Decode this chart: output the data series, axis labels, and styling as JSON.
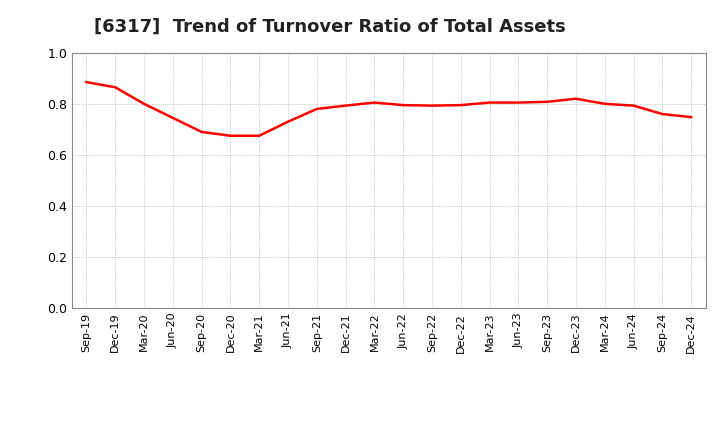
{
  "title": "[6317]  Trend of Turnover Ratio of Total Assets",
  "title_fontsize": 13,
  "title_color": "#222222",
  "line_color": "#FF0000",
  "line_width": 1.8,
  "background_color": "#FFFFFF",
  "grid_color": "#999999",
  "ylim": [
    0.0,
    1.0
  ],
  "yticks": [
    0.0,
    0.2,
    0.4,
    0.6,
    0.8,
    1.0
  ],
  "x_labels": [
    "Sep-19",
    "Dec-19",
    "Mar-20",
    "Jun-20",
    "Sep-20",
    "Dec-20",
    "Mar-21",
    "Jun-21",
    "Sep-21",
    "Dec-21",
    "Mar-22",
    "Jun-22",
    "Sep-22",
    "Dec-22",
    "Mar-23",
    "Jun-23",
    "Sep-23",
    "Dec-23",
    "Mar-24",
    "Jun-24",
    "Sep-24",
    "Dec-24"
  ],
  "y_values": [
    0.885,
    0.865,
    0.8,
    0.745,
    0.69,
    0.675,
    0.675,
    0.73,
    0.78,
    0.793,
    0.805,
    0.795,
    0.793,
    0.795,
    0.805,
    0.805,
    0.808,
    0.82,
    0.8,
    0.793,
    0.76,
    0.748
  ]
}
